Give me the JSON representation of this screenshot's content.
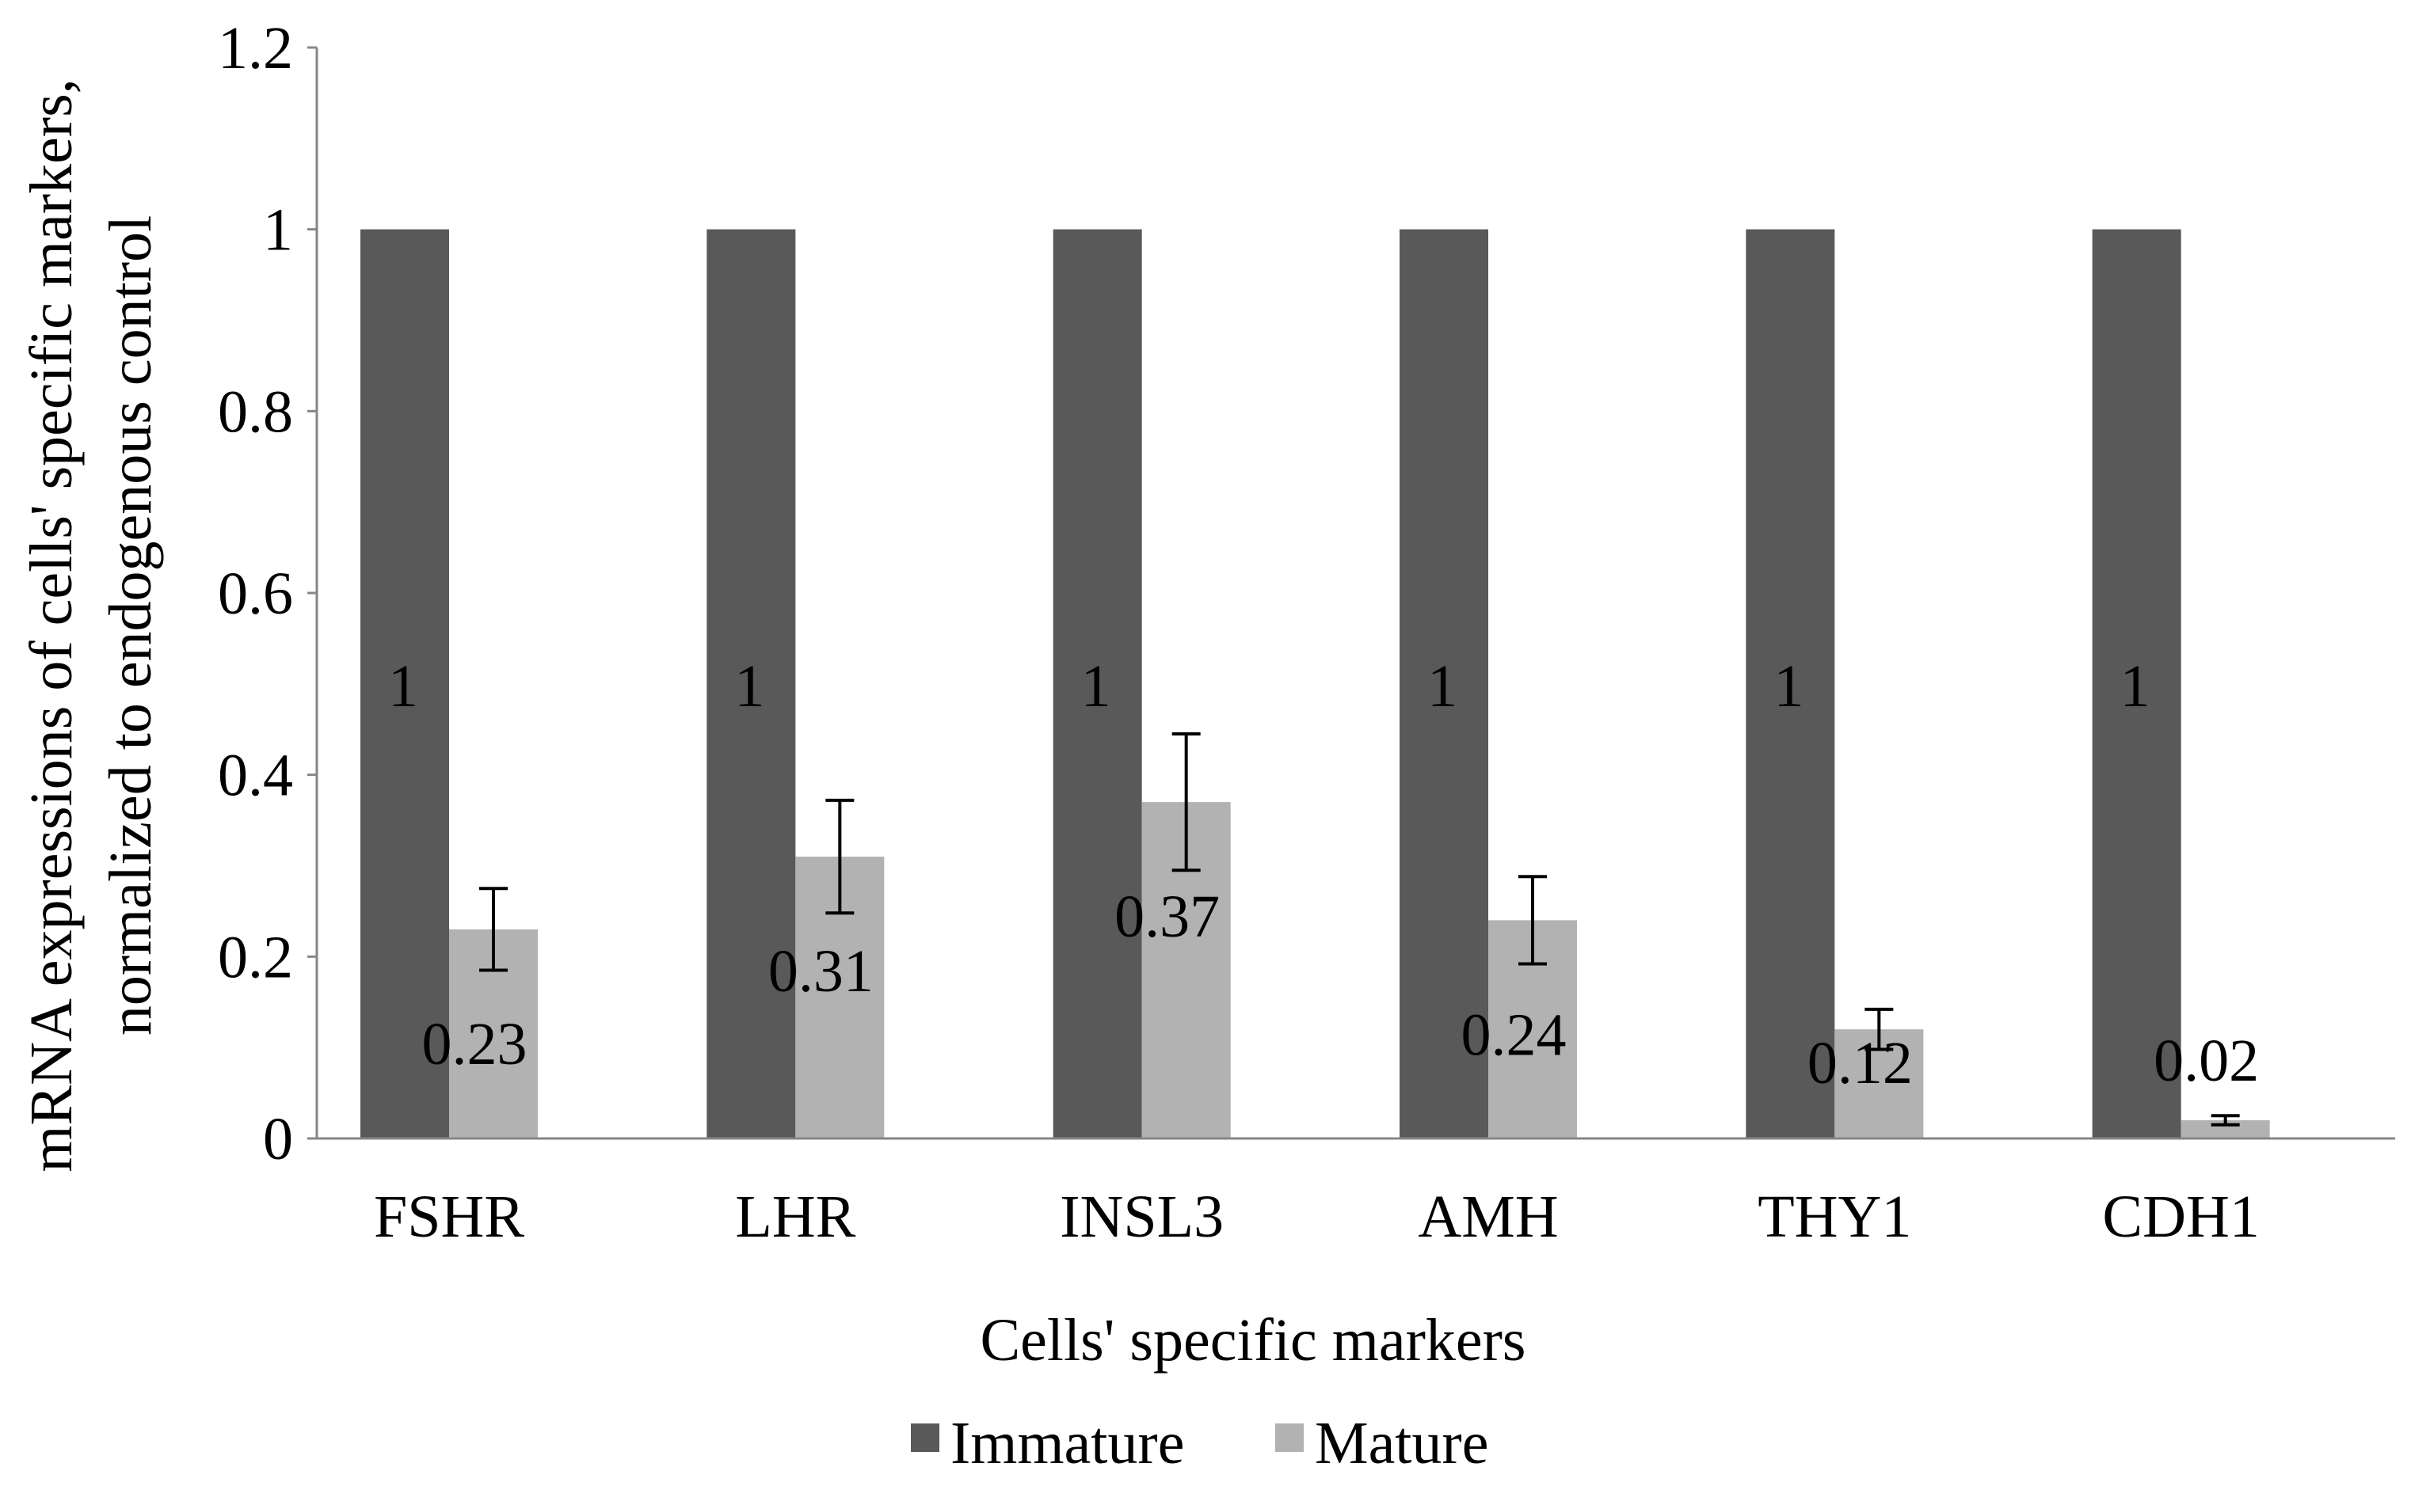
{
  "chart_data": {
    "type": "bar",
    "title": "",
    "xlabel": "Cells' specific markers",
    "ylabel_lines": [
      "mRNA expressions of cells' specific markers,",
      "normalized to endogenous control"
    ],
    "categories": [
      "FSHR",
      "LHR",
      "INSL3",
      "AMH",
      "THY1",
      "CDH1"
    ],
    "ylim": [
      0,
      1.2
    ],
    "yticks": [
      0,
      0.2,
      0.4,
      0.6,
      0.8,
      1,
      1.2
    ],
    "ytick_labels": [
      "0",
      "0.2",
      "0.4",
      "0.6",
      "0.8",
      "1",
      "1.2"
    ],
    "grid": false,
    "legend_position": "bottom",
    "series": [
      {
        "name": "Immature",
        "color": "#595959",
        "values": [
          1,
          1,
          1,
          1,
          1,
          1
        ],
        "labels": [
          "1",
          "1",
          "1",
          "1",
          "1",
          "1"
        ],
        "errors": null
      },
      {
        "name": "Mature",
        "color": "#b2b2b2",
        "values": [
          0.23,
          0.31,
          0.37,
          0.24,
          0.12,
          0.02
        ],
        "labels": [
          "0.23",
          "0.31",
          "0.37",
          "0.24",
          "0.12",
          "0.02"
        ],
        "errors": [
          0.045,
          0.062,
          0.075,
          0.048,
          0.022,
          0.005
        ]
      }
    ]
  }
}
